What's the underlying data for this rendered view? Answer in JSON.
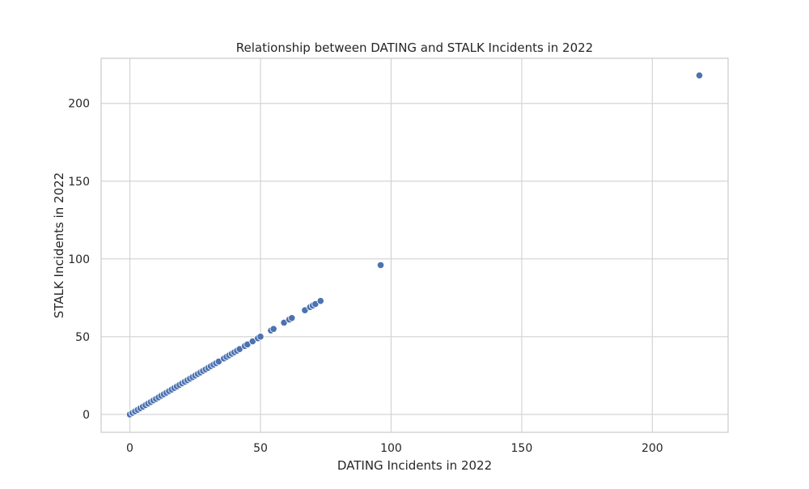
{
  "chart_data": {
    "type": "scatter",
    "title": "Relationship between DATING and STALK Incidents in 2022",
    "xlabel": "DATING Incidents in 2022",
    "ylabel": "STALK Incidents in 2022",
    "xlim": [
      -11,
      229
    ],
    "ylim": [
      -11.5,
      229
    ],
    "xticks": [
      0,
      50,
      100,
      150,
      200
    ],
    "yticks": [
      0,
      50,
      100,
      150,
      200
    ],
    "grid": true,
    "legend": "none",
    "colors": {
      "marker": "#4c72b0",
      "marker_edge": "#ffffff",
      "grid": "#d5d5d5",
      "frame": "#cccccc",
      "text": "#262626",
      "background": "#ffffff"
    },
    "points": [
      [
        0,
        0
      ],
      [
        0,
        0
      ],
      [
        1,
        1
      ],
      [
        1,
        1
      ],
      [
        2,
        2
      ],
      [
        2,
        2
      ],
      [
        3,
        3
      ],
      [
        4,
        4
      ],
      [
        5,
        5
      ],
      [
        6,
        6
      ],
      [
        7,
        7
      ],
      [
        8,
        8
      ],
      [
        9,
        9
      ],
      [
        10,
        10
      ],
      [
        11,
        11
      ],
      [
        12,
        12
      ],
      [
        13,
        13
      ],
      [
        14,
        14
      ],
      [
        15,
        15
      ],
      [
        16,
        16
      ],
      [
        17,
        17
      ],
      [
        18,
        18
      ],
      [
        19,
        19
      ],
      [
        20,
        20
      ],
      [
        21,
        21
      ],
      [
        22,
        22
      ],
      [
        23,
        23
      ],
      [
        24,
        24
      ],
      [
        25,
        25
      ],
      [
        26,
        26
      ],
      [
        27,
        27
      ],
      [
        28,
        28
      ],
      [
        29,
        29
      ],
      [
        30,
        30
      ],
      [
        31,
        31
      ],
      [
        32,
        32
      ],
      [
        33,
        33
      ],
      [
        34,
        34
      ],
      [
        36,
        36
      ],
      [
        37,
        37
      ],
      [
        38,
        38
      ],
      [
        39,
        39
      ],
      [
        40,
        40
      ],
      [
        41,
        41
      ],
      [
        42,
        42
      ],
      [
        44,
        44
      ],
      [
        45,
        45
      ],
      [
        47,
        47
      ],
      [
        49,
        49
      ],
      [
        50,
        50
      ],
      [
        54,
        54
      ],
      [
        55,
        55
      ],
      [
        59,
        59
      ],
      [
        61,
        61
      ],
      [
        62,
        62
      ],
      [
        67,
        67
      ],
      [
        69,
        69
      ],
      [
        70,
        70
      ],
      [
        71,
        71
      ],
      [
        73,
        73
      ],
      [
        96,
        96
      ],
      [
        218,
        218
      ]
    ]
  }
}
